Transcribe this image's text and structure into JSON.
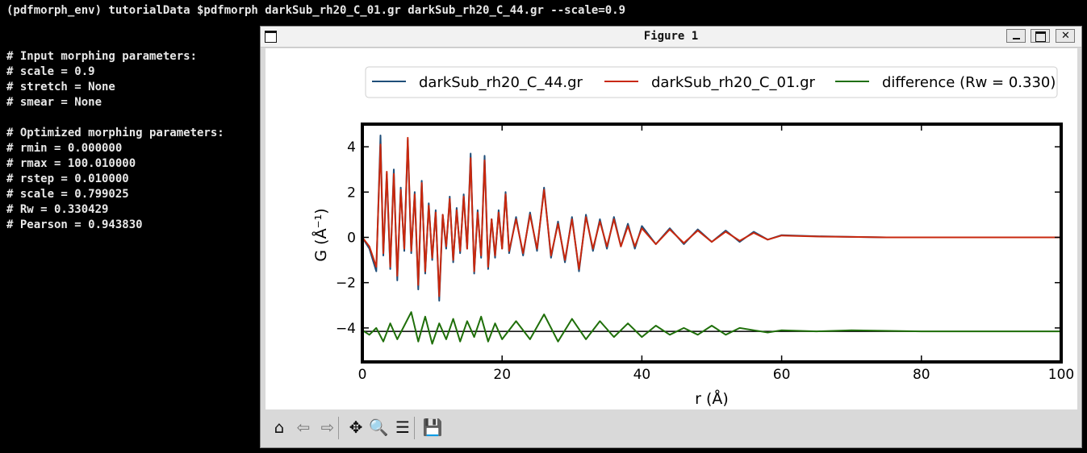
{
  "terminal": {
    "lines": [
      "(pdfmorph_env) tutorialData $pdfmorph darkSub_rh20_C_01.gr darkSub_rh20_C_44.gr --scale=0.9",
      "",
      "# Input morphing parameters:",
      "# scale = 0.9",
      "# stretch = None",
      "# smear = None",
      "",
      "# Optimized morphing parameters:",
      "# rmin = 0.000000",
      "# rmax = 100.010000",
      "# rstep = 0.010000",
      "# scale = 0.799025",
      "# Rw = 0.330429",
      "# Pearson = 0.943830"
    ]
  },
  "window": {
    "title": "Figure 1"
  },
  "toolbar": {
    "buttons": [
      {
        "name": "home-icon",
        "glyph": "⌂"
      },
      {
        "name": "back-icon",
        "glyph": "⇦"
      },
      {
        "name": "forward-icon",
        "glyph": "⇨"
      },
      {
        "name": "pan-icon",
        "glyph": "✥"
      },
      {
        "name": "zoom-icon",
        "glyph": "🔍"
      },
      {
        "name": "configure-subplots-icon",
        "glyph": "☰"
      },
      {
        "name": "save-icon",
        "glyph": "💾"
      }
    ]
  },
  "colors": {
    "series_blue": "#1f4e79",
    "series_red": "#c8280e",
    "series_green": "#1f6f0a"
  },
  "chart_data": {
    "type": "line",
    "xlabel": "r (Å)",
    "ylabel": "G (Å⁻¹)",
    "xlim": [
      0,
      100
    ],
    "ylim": [
      -5.5,
      5
    ],
    "xticks": [
      0,
      20,
      40,
      60,
      80,
      100
    ],
    "yticks": [
      -4,
      -2,
      0,
      2,
      4
    ],
    "yticklabels": [
      "−4",
      "−2",
      "0",
      "2",
      "4"
    ],
    "legend_position": "top",
    "grid": false,
    "series": [
      {
        "name": "darkSub_rh20_C_44.gr",
        "color": "#1f4e79",
        "x": [
          0,
          1,
          2,
          2.6,
          3.0,
          3.5,
          4.0,
          4.5,
          5.0,
          5.5,
          6.0,
          6.5,
          7.0,
          7.5,
          8.0,
          8.5,
          9.0,
          9.5,
          10.0,
          10.5,
          11.0,
          11.5,
          12.0,
          12.5,
          13.0,
          13.5,
          14.0,
          14.5,
          15.0,
          15.5,
          16.0,
          16.5,
          17.0,
          17.5,
          18.0,
          18.5,
          19.0,
          19.5,
          20.0,
          20.5,
          21,
          22,
          23,
          24,
          25,
          26,
          27,
          28,
          29,
          30,
          31,
          32,
          33,
          34,
          35,
          36,
          37,
          38,
          39,
          40,
          42,
          44,
          46,
          48,
          50,
          52,
          54,
          56,
          58,
          60,
          65,
          70,
          75,
          80,
          90,
          100
        ],
        "y": [
          0,
          -0.5,
          -1.5,
          4.5,
          -0.8,
          2.8,
          -1.4,
          3.0,
          -1.9,
          2.2,
          -0.6,
          4.3,
          -0.7,
          2.0,
          -2.3,
          2.5,
          -1.6,
          1.5,
          -1.0,
          1.2,
          -2.8,
          1.0,
          -0.5,
          1.8,
          -1.1,
          1.3,
          -0.7,
          1.9,
          -0.5,
          3.7,
          -1.6,
          1.2,
          -0.9,
          3.6,
          -1.4,
          0.8,
          -0.9,
          1.2,
          -0.5,
          2.0,
          -0.7,
          0.9,
          -0.8,
          1.1,
          -0.6,
          2.2,
          -0.9,
          0.7,
          -1.1,
          0.9,
          -1.5,
          1.0,
          -0.6,
          0.8,
          -0.5,
          0.9,
          -0.4,
          0.6,
          -0.5,
          0.5,
          -0.3,
          0.4,
          -0.3,
          0.35,
          -0.2,
          0.3,
          -0.2,
          0.25,
          -0.1,
          0.1,
          0.05,
          0.02,
          0.0,
          0.0,
          0.0,
          0.0
        ]
      },
      {
        "name": "darkSub_rh20_C_01.gr",
        "color": "#c8280e",
        "x": [
          0,
          1,
          2,
          2.6,
          3.0,
          3.5,
          4.0,
          4.5,
          5.0,
          5.5,
          6.0,
          6.5,
          7.0,
          7.5,
          8.0,
          8.5,
          9.0,
          9.5,
          10.0,
          10.5,
          11.0,
          11.5,
          12.0,
          12.5,
          13.0,
          13.5,
          14.0,
          14.5,
          15.0,
          15.5,
          16.0,
          16.5,
          17.0,
          17.5,
          18.0,
          18.5,
          19.0,
          19.5,
          20.0,
          20.5,
          21,
          22,
          23,
          24,
          25,
          26,
          27,
          28,
          29,
          30,
          31,
          32,
          33,
          34,
          35,
          36,
          37,
          38,
          39,
          40,
          42,
          44,
          46,
          48,
          50,
          52,
          54,
          56,
          58,
          60,
          65,
          70,
          75,
          80,
          90,
          100
        ],
        "y": [
          0,
          -0.4,
          -1.3,
          4.1,
          -0.7,
          2.9,
          -1.3,
          2.8,
          -1.7,
          2.1,
          -0.5,
          4.4,
          -0.6,
          1.9,
          -2.1,
          2.4,
          -1.5,
          1.4,
          -0.9,
          1.1,
          -2.6,
          1.0,
          -0.4,
          1.7,
          -1.0,
          1.2,
          -0.6,
          1.8,
          -0.5,
          3.5,
          -1.5,
          1.1,
          -0.8,
          3.4,
          -1.3,
          0.8,
          -0.8,
          1.1,
          -0.5,
          1.9,
          -0.6,
          0.8,
          -0.7,
          1.0,
          -0.5,
          2.1,
          -0.8,
          0.6,
          -1.0,
          0.8,
          -1.4,
          0.9,
          -0.5,
          0.7,
          -0.4,
          0.8,
          -0.4,
          0.5,
          -0.4,
          0.4,
          -0.3,
          0.35,
          -0.25,
          0.3,
          -0.2,
          0.25,
          -0.15,
          0.2,
          -0.1,
          0.08,
          0.04,
          0.02,
          0.0,
          0.0,
          0.0,
          0.0
        ]
      },
      {
        "name": "difference (Rw = 0.330)",
        "color": "#1f6f0a",
        "x": [
          0,
          1,
          2,
          3,
          4,
          5,
          6,
          7,
          8,
          9,
          10,
          11,
          12,
          13,
          14,
          15,
          16,
          17,
          18,
          19,
          20,
          22,
          24,
          26,
          28,
          30,
          32,
          34,
          36,
          38,
          40,
          42,
          44,
          46,
          48,
          50,
          52,
          54,
          56,
          58,
          60,
          65,
          70,
          80,
          90,
          100
        ],
        "y": [
          -4.1,
          -4.3,
          -4.0,
          -4.6,
          -3.8,
          -4.5,
          -3.9,
          -3.3,
          -4.6,
          -3.5,
          -4.7,
          -3.8,
          -4.5,
          -3.6,
          -4.6,
          -3.7,
          -4.4,
          -3.5,
          -4.6,
          -3.8,
          -4.5,
          -3.7,
          -4.5,
          -3.4,
          -4.6,
          -3.6,
          -4.5,
          -3.7,
          -4.4,
          -3.8,
          -4.4,
          -3.9,
          -4.3,
          -4.0,
          -4.3,
          -3.9,
          -4.3,
          -4.0,
          -4.1,
          -4.2,
          -4.1,
          -4.15,
          -4.1,
          -4.15,
          -4.15,
          -4.15
        ]
      }
    ]
  }
}
